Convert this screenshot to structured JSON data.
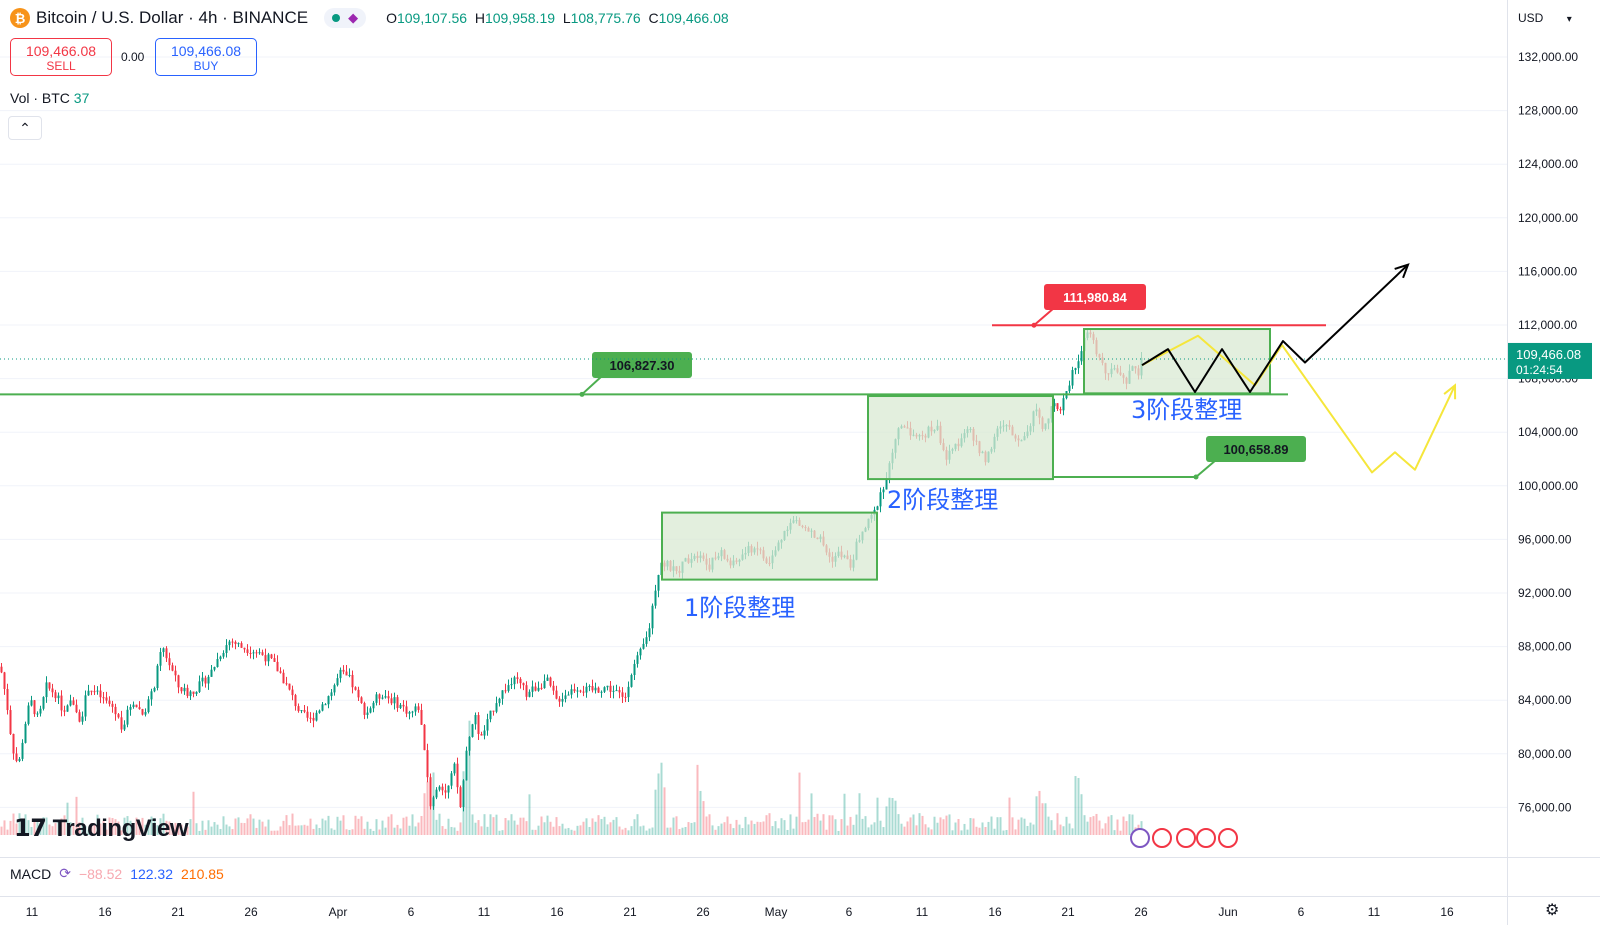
{
  "header": {
    "symbol_title": "Bitcoin / U.S. Dollar · 4h · BINANCE",
    "icon": "bitcoin-icon",
    "ohlc": {
      "o_label": "O",
      "o": "109,107.56",
      "h_label": "H",
      "h": "109,958.19",
      "l_label": "L",
      "l": "108,775.76",
      "c_label": "C",
      "c": "109,466.08"
    }
  },
  "trade": {
    "sell_price": "109,466.08",
    "sell_label": "SELL",
    "spread": "0.00",
    "buy_price": "109,466.08",
    "buy_label": "BUY"
  },
  "volume_indicator": {
    "label": "Vol · BTC",
    "value": "37"
  },
  "macd_indicator": {
    "label": "MACD",
    "v1": "−88.52",
    "v2": "122.32",
    "v3": "210.85"
  },
  "currency": "USD",
  "logo_text": "TradingView",
  "colors": {
    "up": "#089981",
    "down": "#f23645",
    "green_level": "#4caf50",
    "red_level": "#f23645",
    "box_fill": "#d9ead3",
    "box_stroke": "#4caf50",
    "label_text": "#2962ff",
    "yellow": "#f5e63b",
    "black": "#000000",
    "last_price": "#089981"
  },
  "chart_data": {
    "type": "candlestick",
    "x_ticks": [
      "11",
      "16",
      "21",
      "26",
      "Apr",
      "6",
      "11",
      "16",
      "21",
      "26",
      "May",
      "6",
      "11",
      "16",
      "21",
      "26",
      "Jun",
      "6",
      "11",
      "16"
    ],
    "y_ticks": [
      "132,000.00",
      "128,000.00",
      "124,000.00",
      "120,000.00",
      "116,000.00",
      "112,000.00",
      "108,000.00",
      "104,000.00",
      "100,000.00",
      "96,000.00",
      "92,000.00",
      "88,000.00",
      "84,000.00",
      "80,000.00",
      "76,000.00"
    ],
    "y_values": [
      132000,
      128000,
      124000,
      120000,
      116000,
      112000,
      108000,
      104000,
      100000,
      96000,
      92000,
      88000,
      84000,
      80000,
      76000
    ],
    "ylim": [
      74000,
      134000
    ],
    "last_price": {
      "value": "109,466.08",
      "countdown": "01:24:54"
    },
    "levels": [
      {
        "name": "resistance",
        "value": "111,980.84",
        "price": 111980.84
      },
      {
        "name": "support-upper",
        "value": "106,827.30",
        "price": 106827.3
      },
      {
        "name": "support-lower",
        "value": "100,658.89",
        "price": 100658.89
      }
    ],
    "consolidation_boxes": [
      {
        "label": "1阶段整理",
        "low": 93000,
        "high": 98000
      },
      {
        "label": "2阶段整理",
        "low": 100500,
        "high": 106700
      },
      {
        "label": "3阶段整理",
        "low": 106900,
        "high": 111700
      }
    ],
    "price_path": [
      [
        0,
        86500
      ],
      [
        6,
        84000
      ],
      [
        12,
        80500
      ],
      [
        18,
        79000
      ],
      [
        24,
        82000
      ],
      [
        30,
        84000
      ],
      [
        38,
        82500
      ],
      [
        46,
        85000
      ],
      [
        55,
        84500
      ],
      [
        64,
        83000
      ],
      [
        72,
        84000
      ],
      [
        80,
        82500
      ],
      [
        88,
        85000
      ],
      [
        96,
        84500
      ],
      [
        104,
        84000
      ],
      [
        112,
        83500
      ],
      [
        122,
        82000
      ],
      [
        132,
        84000
      ],
      [
        142,
        83000
      ],
      [
        152,
        84500
      ],
      [
        162,
        88000
      ],
      [
        170,
        86500
      ],
      [
        178,
        85000
      ],
      [
        188,
        84500
      ],
      [
        198,
        85000
      ],
      [
        210,
        86000
      ],
      [
        220,
        87500
      ],
      [
        230,
        88500
      ],
      [
        240,
        88000
      ],
      [
        250,
        87800
      ],
      [
        260,
        87500
      ],
      [
        270,
        87000
      ],
      [
        280,
        86000
      ],
      [
        290,
        84500
      ],
      [
        300,
        83000
      ],
      [
        310,
        82500
      ],
      [
        320,
        83500
      ],
      [
        330,
        84500
      ],
      [
        340,
        86000
      ],
      [
        350,
        85500
      ],
      [
        358,
        84000
      ],
      [
        366,
        83000
      ],
      [
        374,
        84000
      ],
      [
        382,
        84500
      ],
      [
        392,
        84000
      ],
      [
        402,
        83500
      ],
      [
        410,
        83000
      ],
      [
        418,
        83500
      ],
      [
        425,
        80000
      ],
      [
        430,
        76000
      ],
      [
        438,
        78000
      ],
      [
        446,
        77000
      ],
      [
        454,
        79000
      ],
      [
        460,
        76000
      ],
      [
        466,
        80000
      ],
      [
        474,
        83000
      ],
      [
        480,
        81000
      ],
      [
        488,
        82500
      ],
      [
        496,
        84000
      ],
      [
        506,
        85000
      ],
      [
        516,
        85500
      ],
      [
        526,
        84500
      ],
      [
        536,
        85000
      ],
      [
        546,
        85500
      ],
      [
        556,
        84000
      ],
      [
        566,
        84500
      ],
      [
        576,
        85000
      ],
      [
        586,
        84700
      ],
      [
        596,
        84800
      ],
      [
        606,
        85000
      ],
      [
        616,
        84600
      ],
      [
        624,
        84000
      ],
      [
        630,
        86000
      ],
      [
        640,
        87500
      ],
      [
        648,
        89000
      ],
      [
        654,
        92000
      ],
      [
        660,
        94500
      ],
      [
        668,
        94000
      ],
      [
        676,
        93500
      ],
      [
        686,
        94500
      ],
      [
        696,
        95000
      ],
      [
        708,
        94000
      ],
      [
        720,
        95000
      ],
      [
        732,
        94000
      ],
      [
        744,
        95000
      ],
      [
        756,
        95500
      ],
      [
        768,
        94000
      ],
      [
        780,
        96000
      ],
      [
        790,
        97500
      ],
      [
        800,
        97000
      ],
      [
        810,
        96500
      ],
      [
        820,
        96000
      ],
      [
        830,
        94500
      ],
      [
        840,
        95000
      ],
      [
        850,
        94000
      ],
      [
        858,
        96000
      ],
      [
        866,
        97000
      ],
      [
        874,
        98000
      ],
      [
        880,
        99500
      ],
      [
        888,
        101000
      ],
      [
        896,
        104000
      ],
      [
        906,
        104500
      ],
      [
        916,
        103500
      ],
      [
        926,
        104000
      ],
      [
        936,
        104500
      ],
      [
        946,
        102000
      ],
      [
        956,
        103000
      ],
      [
        966,
        104500
      ],
      [
        976,
        103000
      ],
      [
        986,
        102000
      ],
      [
        996,
        104000
      ],
      [
        1006,
        104500
      ],
      [
        1016,
        103500
      ],
      [
        1026,
        104000
      ],
      [
        1036,
        106000
      ],
      [
        1044,
        104000
      ],
      [
        1052,
        106500
      ],
      [
        1060,
        105500
      ],
      [
        1066,
        107000
      ],
      [
        1072,
        108500
      ],
      [
        1078,
        109500
      ],
      [
        1084,
        111000
      ],
      [
        1090,
        111500
      ],
      [
        1096,
        110000
      ],
      [
        1102,
        109000
      ],
      [
        1108,
        108000
      ],
      [
        1114,
        109000
      ],
      [
        1120,
        108000
      ],
      [
        1126,
        107500
      ],
      [
        1132,
        109000
      ],
      [
        1138,
        108500
      ],
      [
        1142,
        109466
      ]
    ],
    "projection_black": [
      [
        1142,
        109000
      ],
      [
        1168,
        110200
      ],
      [
        1195,
        107000
      ],
      [
        1222,
        110200
      ],
      [
        1250,
        107000
      ],
      [
        1283,
        110800
      ],
      [
        1305,
        109200
      ],
      [
        1408,
        116500
      ]
    ],
    "projection_yellow": [
      [
        1142,
        109000
      ],
      [
        1198,
        111200
      ],
      [
        1255,
        107500
      ],
      [
        1282,
        110500
      ],
      [
        1372,
        101000
      ],
      [
        1395,
        102500
      ],
      [
        1415,
        101200
      ],
      [
        1455,
        107500
      ]
    ],
    "volume_peaks": [
      [
        466,
        0.65
      ],
      [
        660,
        0.5
      ],
      [
        1078,
        0.35
      ],
      [
        700,
        0.25
      ],
      [
        430,
        0.45
      ],
      [
        1040,
        0.25
      ],
      [
        890,
        0.22
      ]
    ]
  }
}
